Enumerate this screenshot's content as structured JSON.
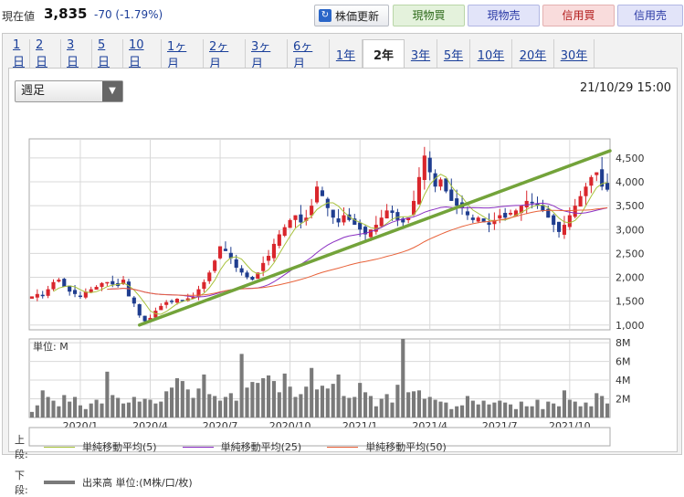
{
  "quote": {
    "label": "現在値",
    "price": "3,835",
    "change": "-70 (-1.79%)",
    "refresh_label": "株価更新",
    "buttons": [
      "現物買",
      "現物売",
      "信用買",
      "信用売"
    ]
  },
  "period_tabs": [
    "1日",
    "2日",
    "3日",
    "5日",
    "10日",
    "1ヶ月",
    "2ヶ月",
    "3ヶ月",
    "6ヶ月",
    "1年",
    "2年",
    "3年",
    "5年",
    "10年",
    "20年",
    "30年"
  ],
  "active_tab": "2年",
  "interval_select": "週足",
  "timestamp": "21/10/29 15:00",
  "volume_unit_label": "単位: M",
  "legend": {
    "upper_label": "上段:",
    "lower_label": "下段:",
    "ma5": "単純移動平均(5)",
    "ma25": "単純移動平均(25)",
    "ma50": "単純移動平均(50)",
    "volume": "出来高 単位:(M株/口/枚)"
  },
  "colors": {
    "up": "#d9262c",
    "down": "#1f3d8f",
    "ma5": "#a8c23c",
    "ma25": "#8a2fc2",
    "ma50": "#e8623a",
    "trendline": "#73a33a",
    "volume": "#7a7a7a"
  },
  "chart_data": [
    {
      "type": "candlestick",
      "x_tick_labels": [
        "2020/1",
        "2020/4",
        "2020/7",
        "2020/10",
        "2021/1",
        "2021/4",
        "2021/7",
        "2021/10"
      ],
      "y_tick_labels": [
        "1,000",
        "1,500",
        "2,000",
        "2,500",
        "3,000",
        "3,500",
        "4,000",
        "4,500"
      ],
      "ylim": [
        900,
        4900
      ],
      "weeks": 108,
      "close": [
        1600,
        1650,
        1620,
        1750,
        1900,
        1950,
        1800,
        1700,
        1650,
        1600,
        1700,
        1750,
        1800,
        1880,
        1900,
        1850,
        1820,
        1950,
        1600,
        1450,
        1200,
        1080,
        1150,
        1300,
        1400,
        1480,
        1500,
        1550,
        1520,
        1560,
        1600,
        1750,
        1900,
        2100,
        2350,
        2650,
        2550,
        2400,
        2200,
        2100,
        2000,
        1950,
        2100,
        2300,
        2450,
        2700,
        2900,
        3050,
        3200,
        3300,
        3150,
        3250,
        3500,
        3900,
        3700,
        3450,
        3250,
        3150,
        3300,
        3200,
        3100,
        3000,
        2900,
        3000,
        3100,
        3250,
        3400,
        3350,
        3200,
        3150,
        3250,
        3600,
        4100,
        4550,
        4200,
        3900,
        4050,
        3800,
        3600,
        3500,
        3450,
        3300,
        3200,
        3250,
        3150,
        3100,
        3200,
        3300,
        3250,
        3350,
        3400,
        3500,
        3600,
        3550,
        3500,
        3400,
        3250,
        3100,
        2950,
        3100,
        3300,
        3500,
        3700,
        3900,
        4100,
        4200,
        3900,
        3835
      ],
      "ma_lines": [
        {
          "name": "単純移動平均(5)",
          "color_key": "ma5"
        },
        {
          "name": "単純移動平均(25)",
          "color_key": "ma25"
        },
        {
          "name": "単純移動平均(50)",
          "color_key": "ma50"
        }
      ],
      "trendline": {
        "start": {
          "week": 20,
          "value": 1000
        },
        "end": {
          "week": 108,
          "value": 4650
        }
      }
    },
    {
      "type": "bar",
      "name": "出来高",
      "y_tick_labels": [
        "2M",
        "4M",
        "6M",
        "8M"
      ],
      "ylim": [
        0,
        8.4
      ],
      "values": [
        0.6,
        1.3,
        2.9,
        2.2,
        1.8,
        1.2,
        2.4,
        1.7,
        2.2,
        1.3,
        0.9,
        1.5,
        1.9,
        1.5,
        4.9,
        2.4,
        2.1,
        1.5,
        1.6,
        2.2,
        1.7,
        2.0,
        1.9,
        1.5,
        1.7,
        2.8,
        3.2,
        4.2,
        3.9,
        3.0,
        2.1,
        3.1,
        4.6,
        2.5,
        2.3,
        1.8,
        2.2,
        2.6,
        1.8,
        6.8,
        3.2,
        3.8,
        3.7,
        4.2,
        4.5,
        3.9,
        2.7,
        4.7,
        3.3,
        2.2,
        2.5,
        3.3,
        5.3,
        3.0,
        3.4,
        3.1,
        3.6,
        4.6,
        2.3,
        2.1,
        2.2,
        3.7,
        2.7,
        2.3,
        1.2,
        2.0,
        2.5,
        1.6,
        3.5,
        8.4,
        2.7,
        2.8,
        2.9,
        2.0,
        2.2,
        1.9,
        1.7,
        1.6,
        0.9,
        1.2,
        1.3,
        2.3,
        1.8,
        1.4,
        1.8,
        1.4,
        1.6,
        1.8,
        1.6,
        1.4,
        0.9,
        1.7,
        1.2,
        1.2,
        1.9,
        0.9,
        1.7,
        1.5,
        1.2,
        2.9,
        1.9,
        1.7,
        1.2,
        1.6,
        1.2,
        2.6,
        2.3,
        1.5
      ]
    }
  ]
}
